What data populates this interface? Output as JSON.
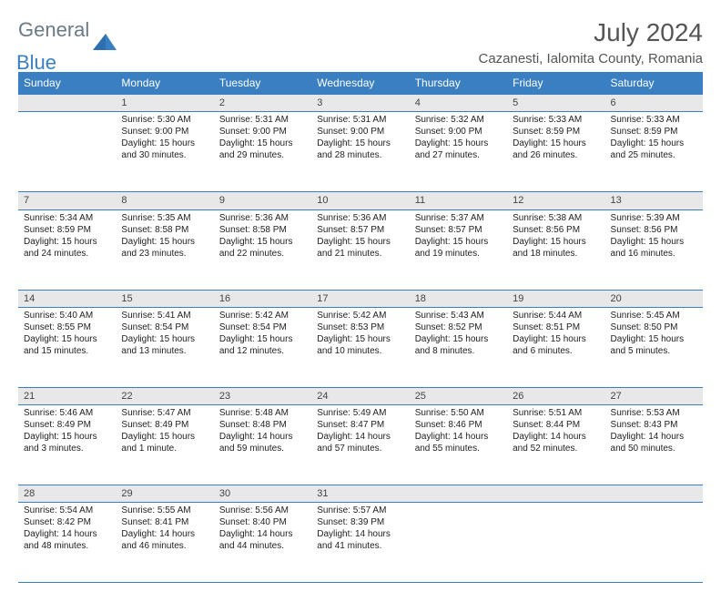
{
  "brand": {
    "part1": "General",
    "part2": "Blue"
  },
  "title": "July 2024",
  "location": "Cazanesti, Ialomita County, Romania",
  "weekdays": [
    "Sunday",
    "Monday",
    "Tuesday",
    "Wednesday",
    "Thursday",
    "Friday",
    "Saturday"
  ],
  "colors": {
    "header_bg": "#3a7fc1",
    "daynum_bg": "#e8e8e8",
    "border": "#3a7fc1",
    "logo_gray": "#6b7a87",
    "logo_blue": "#3a7fc1"
  },
  "weeks": [
    [
      null,
      {
        "n": "1",
        "sr": "Sunrise: 5:30 AM",
        "ss": "Sunset: 9:00 PM",
        "d1": "Daylight: 15 hours",
        "d2": "and 30 minutes."
      },
      {
        "n": "2",
        "sr": "Sunrise: 5:31 AM",
        "ss": "Sunset: 9:00 PM",
        "d1": "Daylight: 15 hours",
        "d2": "and 29 minutes."
      },
      {
        "n": "3",
        "sr": "Sunrise: 5:31 AM",
        "ss": "Sunset: 9:00 PM",
        "d1": "Daylight: 15 hours",
        "d2": "and 28 minutes."
      },
      {
        "n": "4",
        "sr": "Sunrise: 5:32 AM",
        "ss": "Sunset: 9:00 PM",
        "d1": "Daylight: 15 hours",
        "d2": "and 27 minutes."
      },
      {
        "n": "5",
        "sr": "Sunrise: 5:33 AM",
        "ss": "Sunset: 8:59 PM",
        "d1": "Daylight: 15 hours",
        "d2": "and 26 minutes."
      },
      {
        "n": "6",
        "sr": "Sunrise: 5:33 AM",
        "ss": "Sunset: 8:59 PM",
        "d1": "Daylight: 15 hours",
        "d2": "and 25 minutes."
      }
    ],
    [
      {
        "n": "7",
        "sr": "Sunrise: 5:34 AM",
        "ss": "Sunset: 8:59 PM",
        "d1": "Daylight: 15 hours",
        "d2": "and 24 minutes."
      },
      {
        "n": "8",
        "sr": "Sunrise: 5:35 AM",
        "ss": "Sunset: 8:58 PM",
        "d1": "Daylight: 15 hours",
        "d2": "and 23 minutes."
      },
      {
        "n": "9",
        "sr": "Sunrise: 5:36 AM",
        "ss": "Sunset: 8:58 PM",
        "d1": "Daylight: 15 hours",
        "d2": "and 22 minutes."
      },
      {
        "n": "10",
        "sr": "Sunrise: 5:36 AM",
        "ss": "Sunset: 8:57 PM",
        "d1": "Daylight: 15 hours",
        "d2": "and 21 minutes."
      },
      {
        "n": "11",
        "sr": "Sunrise: 5:37 AM",
        "ss": "Sunset: 8:57 PM",
        "d1": "Daylight: 15 hours",
        "d2": "and 19 minutes."
      },
      {
        "n": "12",
        "sr": "Sunrise: 5:38 AM",
        "ss": "Sunset: 8:56 PM",
        "d1": "Daylight: 15 hours",
        "d2": "and 18 minutes."
      },
      {
        "n": "13",
        "sr": "Sunrise: 5:39 AM",
        "ss": "Sunset: 8:56 PM",
        "d1": "Daylight: 15 hours",
        "d2": "and 16 minutes."
      }
    ],
    [
      {
        "n": "14",
        "sr": "Sunrise: 5:40 AM",
        "ss": "Sunset: 8:55 PM",
        "d1": "Daylight: 15 hours",
        "d2": "and 15 minutes."
      },
      {
        "n": "15",
        "sr": "Sunrise: 5:41 AM",
        "ss": "Sunset: 8:54 PM",
        "d1": "Daylight: 15 hours",
        "d2": "and 13 minutes."
      },
      {
        "n": "16",
        "sr": "Sunrise: 5:42 AM",
        "ss": "Sunset: 8:54 PM",
        "d1": "Daylight: 15 hours",
        "d2": "and 12 minutes."
      },
      {
        "n": "17",
        "sr": "Sunrise: 5:42 AM",
        "ss": "Sunset: 8:53 PM",
        "d1": "Daylight: 15 hours",
        "d2": "and 10 minutes."
      },
      {
        "n": "18",
        "sr": "Sunrise: 5:43 AM",
        "ss": "Sunset: 8:52 PM",
        "d1": "Daylight: 15 hours",
        "d2": "and 8 minutes."
      },
      {
        "n": "19",
        "sr": "Sunrise: 5:44 AM",
        "ss": "Sunset: 8:51 PM",
        "d1": "Daylight: 15 hours",
        "d2": "and 6 minutes."
      },
      {
        "n": "20",
        "sr": "Sunrise: 5:45 AM",
        "ss": "Sunset: 8:50 PM",
        "d1": "Daylight: 15 hours",
        "d2": "and 5 minutes."
      }
    ],
    [
      {
        "n": "21",
        "sr": "Sunrise: 5:46 AM",
        "ss": "Sunset: 8:49 PM",
        "d1": "Daylight: 15 hours",
        "d2": "and 3 minutes."
      },
      {
        "n": "22",
        "sr": "Sunrise: 5:47 AM",
        "ss": "Sunset: 8:49 PM",
        "d1": "Daylight: 15 hours",
        "d2": "and 1 minute."
      },
      {
        "n": "23",
        "sr": "Sunrise: 5:48 AM",
        "ss": "Sunset: 8:48 PM",
        "d1": "Daylight: 14 hours",
        "d2": "and 59 minutes."
      },
      {
        "n": "24",
        "sr": "Sunrise: 5:49 AM",
        "ss": "Sunset: 8:47 PM",
        "d1": "Daylight: 14 hours",
        "d2": "and 57 minutes."
      },
      {
        "n": "25",
        "sr": "Sunrise: 5:50 AM",
        "ss": "Sunset: 8:46 PM",
        "d1": "Daylight: 14 hours",
        "d2": "and 55 minutes."
      },
      {
        "n": "26",
        "sr": "Sunrise: 5:51 AM",
        "ss": "Sunset: 8:44 PM",
        "d1": "Daylight: 14 hours",
        "d2": "and 52 minutes."
      },
      {
        "n": "27",
        "sr": "Sunrise: 5:53 AM",
        "ss": "Sunset: 8:43 PM",
        "d1": "Daylight: 14 hours",
        "d2": "and 50 minutes."
      }
    ],
    [
      {
        "n": "28",
        "sr": "Sunrise: 5:54 AM",
        "ss": "Sunset: 8:42 PM",
        "d1": "Daylight: 14 hours",
        "d2": "and 48 minutes."
      },
      {
        "n": "29",
        "sr": "Sunrise: 5:55 AM",
        "ss": "Sunset: 8:41 PM",
        "d1": "Daylight: 14 hours",
        "d2": "and 46 minutes."
      },
      {
        "n": "30",
        "sr": "Sunrise: 5:56 AM",
        "ss": "Sunset: 8:40 PM",
        "d1": "Daylight: 14 hours",
        "d2": "and 44 minutes."
      },
      {
        "n": "31",
        "sr": "Sunrise: 5:57 AM",
        "ss": "Sunset: 8:39 PM",
        "d1": "Daylight: 14 hours",
        "d2": "and 41 minutes."
      },
      null,
      null,
      null
    ]
  ]
}
